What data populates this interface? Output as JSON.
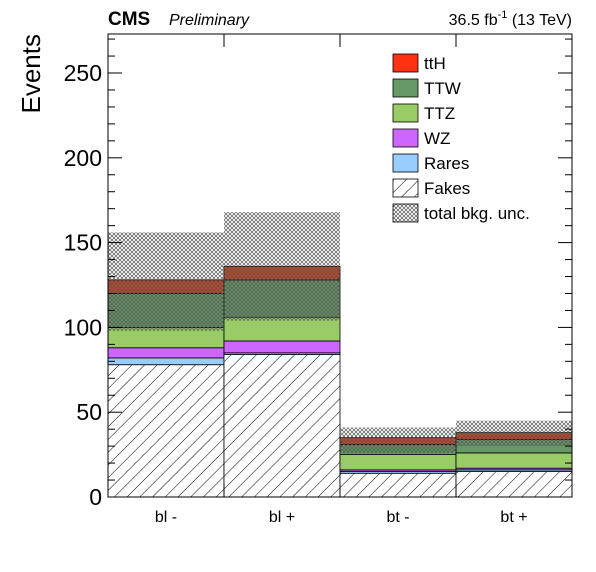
{
  "header": {
    "experiment": "CMS",
    "status": "Preliminary",
    "lumi_value": "36.5 fb",
    "lumi_exp": "-1",
    "lumi_energy": " (13 TeV)"
  },
  "chart_data": {
    "type": "bar",
    "stacked": true,
    "categories": [
      "bl -",
      "bl +",
      "bt -",
      "bt +"
    ],
    "ylabel": "Events",
    "ylim": [
      0,
      273
    ],
    "yticks": [
      0,
      50,
      100,
      150,
      200,
      250
    ],
    "series": [
      {
        "name": "Fakes",
        "color": "#ffffff",
        "pattern": "diagonal-hatch",
        "values": [
          78,
          84,
          14,
          15
        ]
      },
      {
        "name": "Rares",
        "color": "#99ccff",
        "values": [
          4,
          1,
          1,
          1
        ]
      },
      {
        "name": "WZ",
        "color": "#cc66ff",
        "values": [
          6,
          7,
          1,
          1
        ]
      },
      {
        "name": "TTZ",
        "color": "#99cc66",
        "values": [
          12,
          14,
          9,
          9
        ]
      },
      {
        "name": "TTW",
        "color": "#669966",
        "values": [
          20,
          22,
          6,
          8
        ]
      },
      {
        "name": "ttH",
        "color": "#cc4422",
        "values": [
          8,
          8,
          4,
          4
        ]
      }
    ],
    "uncertainty": {
      "name": "total bkg. unc.",
      "lower": [
        98,
        104,
        26,
        30
      ],
      "upper": [
        156,
        168,
        41,
        45
      ]
    },
    "legend_placement": "top-right",
    "legend": [
      {
        "label": "ttH",
        "color": "#ff3311"
      },
      {
        "label": "TTW",
        "color": "#669966"
      },
      {
        "label": "TTZ",
        "color": "#99cc66"
      },
      {
        "label": "WZ",
        "color": "#cc66ff"
      },
      {
        "label": "Rares",
        "color": "#99ccff"
      },
      {
        "label": "Fakes",
        "color": "#ffffff",
        "pattern": "diagonal-hatch"
      },
      {
        "label": "total bkg. unc.",
        "color": "#ffffff",
        "pattern": "crosshatch"
      }
    ]
  }
}
